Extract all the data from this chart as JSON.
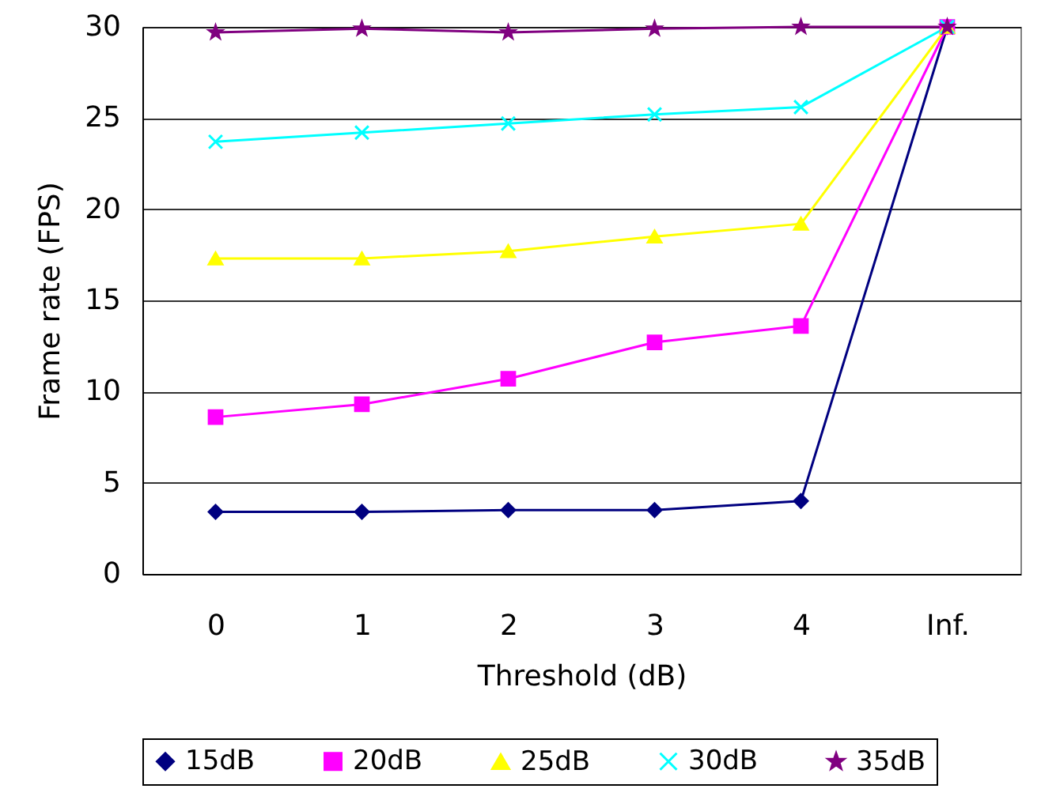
{
  "chart_data": {
    "type": "line",
    "xlabel": "Threshold (dB)",
    "ylabel": "Frame rate (FPS)",
    "categories": [
      "0",
      "1",
      "2",
      "3",
      "4",
      "Inf."
    ],
    "series": [
      {
        "name": "15dB",
        "color": "#000080",
        "marker": "diamond",
        "values": [
          3.4,
          3.4,
          3.5,
          3.5,
          4.0,
          30
        ]
      },
      {
        "name": "20dB",
        "color": "#ff00ff",
        "marker": "square",
        "values": [
          8.6,
          9.3,
          10.7,
          12.7,
          13.6,
          30
        ]
      },
      {
        "name": "25dB",
        "color": "#ffff00",
        "marker": "triangle",
        "values": [
          17.3,
          17.3,
          17.7,
          18.5,
          19.2,
          30
        ]
      },
      {
        "name": "30dB",
        "color": "#00ffff",
        "marker": "cross",
        "values": [
          23.7,
          24.2,
          24.7,
          25.2,
          25.6,
          30
        ]
      },
      {
        "name": "35dB",
        "color": "#800080",
        "marker": "star",
        "values": [
          29.7,
          29.9,
          29.7,
          29.9,
          30,
          30
        ]
      }
    ],
    "ylim": [
      0,
      30
    ],
    "yticks": [
      0,
      5,
      10,
      15,
      20,
      25,
      30
    ],
    "grid": "y",
    "legend": "bottom"
  }
}
